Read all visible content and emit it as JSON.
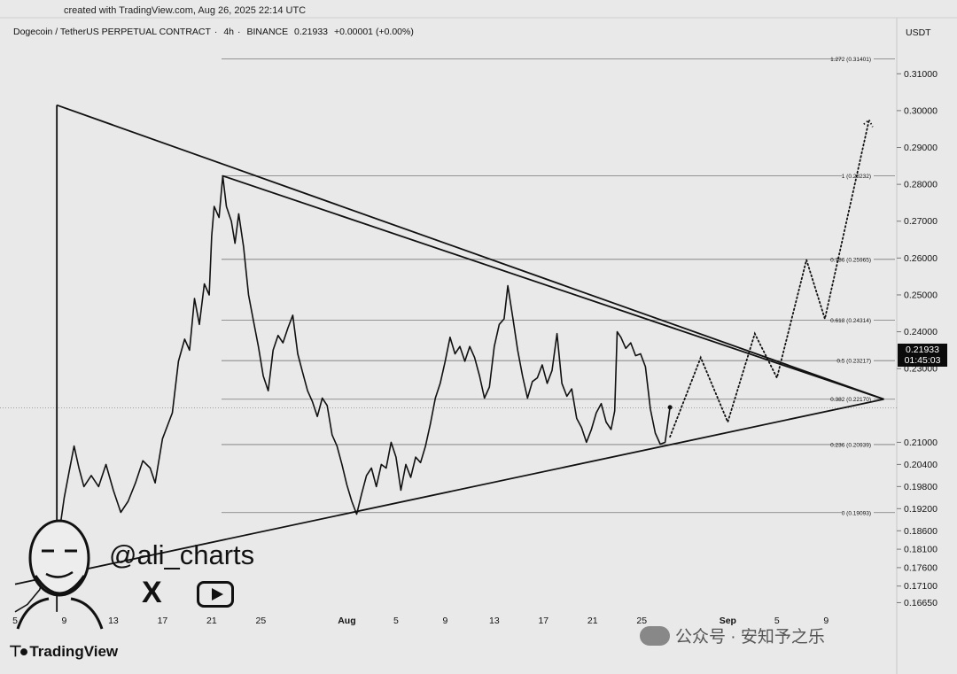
{
  "header": {
    "created": "created with TradingView.com, Aug 26, 2025 22:14 UTC",
    "symbol": "Dogecoin / TetherUS PERPETUAL CONTRACT",
    "interval": "4h",
    "exchange": "BINANCE",
    "price": "0.21933",
    "change": "+0.00001 (+0.00%)",
    "currency": "USDT"
  },
  "price_tag": {
    "price": "0.21933",
    "countdown": "01:45:03"
  },
  "branding": {
    "logo_text": "TradingView",
    "handle": "@ali_charts",
    "x_glyph": "X",
    "watermark": "公众号 · 安知予之乐"
  },
  "colors": {
    "background": "#e9e9e9",
    "line": "#111111",
    "grid": "#c9c9c9",
    "price_tag_bg": "#0b0b0b"
  },
  "chart_data": {
    "type": "line",
    "xlim": [
      0,
      68
    ],
    "ylim": [
      0.163,
      0.318
    ],
    "x_ticks": [
      {
        "x": 0,
        "label": "5"
      },
      {
        "x": 4,
        "label": "9"
      },
      {
        "x": 8,
        "label": "13"
      },
      {
        "x": 12,
        "label": "17"
      },
      {
        "x": 16,
        "label": "21"
      },
      {
        "x": 20,
        "label": "25"
      },
      {
        "x": 27,
        "label": "Aug"
      },
      {
        "x": 31,
        "label": "5"
      },
      {
        "x": 35,
        "label": "9"
      },
      {
        "x": 39,
        "label": "13"
      },
      {
        "x": 43,
        "label": "17"
      },
      {
        "x": 47,
        "label": "21"
      },
      {
        "x": 51,
        "label": "25"
      },
      {
        "x": 58,
        "label": "Sep"
      },
      {
        "x": 62,
        "label": "5"
      },
      {
        "x": 66,
        "label": "9"
      }
    ],
    "y_ticks": [
      {
        "v": 0.31,
        "label": "0.31000"
      },
      {
        "v": 0.3,
        "label": "0.30000"
      },
      {
        "v": 0.29,
        "label": "0.29000"
      },
      {
        "v": 0.28,
        "label": "0.28000"
      },
      {
        "v": 0.27,
        "label": "0.27000"
      },
      {
        "v": 0.26,
        "label": "0.26000"
      },
      {
        "v": 0.25,
        "label": "0.25000"
      },
      {
        "v": 0.24,
        "label": "0.24000"
      },
      {
        "v": 0.23,
        "label": "0.23000"
      },
      {
        "v": 0.21,
        "label": "0.21000"
      },
      {
        "v": 0.204,
        "label": "0.20400"
      },
      {
        "v": 0.198,
        "label": "0.19800"
      },
      {
        "v": 0.192,
        "label": "0.19200"
      },
      {
        "v": 0.186,
        "label": "0.18600"
      },
      {
        "v": 0.181,
        "label": "0.18100"
      },
      {
        "v": 0.176,
        "label": "0.17600"
      },
      {
        "v": 0.171,
        "label": "0.17100"
      },
      {
        "v": 0.1665,
        "label": "0.16650"
      }
    ],
    "fib_levels": [
      {
        "v": 0.31401,
        "label": "1.272 (0.31401)"
      },
      {
        "v": 0.28232,
        "label": "1 (0.28232)"
      },
      {
        "v": 0.25965,
        "label": "0.786 (0.25965)"
      },
      {
        "v": 0.24314,
        "label": "0.618 (0.24314)"
      },
      {
        "v": 0.23217,
        "label": "0.5 (0.23217)"
      },
      {
        "v": 0.2217,
        "label": "0.382 (0.22170)"
      },
      {
        "v": 0.20939,
        "label": "0.236 (0.20939)"
      },
      {
        "v": 0.19093,
        "label": "0 (0.19093)"
      }
    ],
    "fib_x_start": 16.8,
    "price_series": [
      [
        0,
        0.164
      ],
      [
        1,
        0.166
      ],
      [
        2,
        0.17
      ],
      [
        2.6,
        0.176
      ],
      [
        3,
        0.178
      ],
      [
        3.4,
        0.181
      ],
      [
        4,
        0.195
      ],
      [
        4.4,
        0.202
      ],
      [
        4.8,
        0.209
      ],
      [
        5.2,
        0.203
      ],
      [
        5.6,
        0.198
      ],
      [
        6.2,
        0.201
      ],
      [
        6.8,
        0.198
      ],
      [
        7.4,
        0.204
      ],
      [
        8.0,
        0.197
      ],
      [
        8.6,
        0.191
      ],
      [
        9.2,
        0.194
      ],
      [
        9.8,
        0.199
      ],
      [
        10.4,
        0.205
      ],
      [
        11.0,
        0.203
      ],
      [
        11.4,
        0.199
      ],
      [
        12.0,
        0.211
      ],
      [
        12.8,
        0.218
      ],
      [
        13.3,
        0.232
      ],
      [
        13.8,
        0.238
      ],
      [
        14.2,
        0.235
      ],
      [
        14.6,
        0.249
      ],
      [
        15.0,
        0.242
      ],
      [
        15.4,
        0.253
      ],
      [
        15.8,
        0.25
      ],
      [
        16.0,
        0.266
      ],
      [
        16.2,
        0.274
      ],
      [
        16.6,
        0.271
      ],
      [
        16.9,
        0.2823
      ],
      [
        17.2,
        0.274
      ],
      [
        17.6,
        0.27
      ],
      [
        17.9,
        0.264
      ],
      [
        18.2,
        0.272
      ],
      [
        18.6,
        0.263
      ],
      [
        19.0,
        0.25
      ],
      [
        19.4,
        0.243
      ],
      [
        19.8,
        0.236
      ],
      [
        20.2,
        0.228
      ],
      [
        20.6,
        0.224
      ],
      [
        21.0,
        0.235
      ],
      [
        21.4,
        0.239
      ],
      [
        21.8,
        0.237
      ],
      [
        22.2,
        0.241
      ],
      [
        22.6,
        0.2445
      ],
      [
        23.0,
        0.234
      ],
      [
        23.4,
        0.229
      ],
      [
        23.8,
        0.224
      ],
      [
        24.2,
        0.221
      ],
      [
        24.6,
        0.217
      ],
      [
        25.0,
        0.222
      ],
      [
        25.4,
        0.22
      ],
      [
        25.8,
        0.212
      ],
      [
        26.2,
        0.209
      ],
      [
        26.6,
        0.204
      ],
      [
        27.0,
        0.1985
      ],
      [
        27.4,
        0.194
      ],
      [
        27.8,
        0.1905
      ],
      [
        28.2,
        0.196
      ],
      [
        28.6,
        0.201
      ],
      [
        29.0,
        0.203
      ],
      [
        29.4,
        0.198
      ],
      [
        29.8,
        0.204
      ],
      [
        30.2,
        0.203
      ],
      [
        30.6,
        0.21
      ],
      [
        31.0,
        0.206
      ],
      [
        31.4,
        0.197
      ],
      [
        31.8,
        0.204
      ],
      [
        32.2,
        0.2005
      ],
      [
        32.6,
        0.206
      ],
      [
        33.0,
        0.2045
      ],
      [
        33.4,
        0.209
      ],
      [
        33.8,
        0.215
      ],
      [
        34.2,
        0.222
      ],
      [
        34.6,
        0.226
      ],
      [
        35.0,
        0.232
      ],
      [
        35.4,
        0.2385
      ],
      [
        35.8,
        0.234
      ],
      [
        36.2,
        0.236
      ],
      [
        36.6,
        0.232
      ],
      [
        37.0,
        0.236
      ],
      [
        37.4,
        0.233
      ],
      [
        37.8,
        0.228
      ],
      [
        38.2,
        0.222
      ],
      [
        38.6,
        0.225
      ],
      [
        39.0,
        0.236
      ],
      [
        39.4,
        0.242
      ],
      [
        39.8,
        0.2435
      ],
      [
        40.1,
        0.2525
      ],
      [
        40.5,
        0.244
      ],
      [
        40.9,
        0.235
      ],
      [
        41.3,
        0.228
      ],
      [
        41.7,
        0.222
      ],
      [
        42.1,
        0.2265
      ],
      [
        42.5,
        0.2275
      ],
      [
        42.9,
        0.231
      ],
      [
        43.3,
        0.226
      ],
      [
        43.7,
        0.2295
      ],
      [
        44.1,
        0.2395
      ],
      [
        44.5,
        0.226
      ],
      [
        44.9,
        0.2225
      ],
      [
        45.3,
        0.2245
      ],
      [
        45.7,
        0.2165
      ],
      [
        46.1,
        0.214
      ],
      [
        46.5,
        0.21
      ],
      [
        46.9,
        0.2135
      ],
      [
        47.3,
        0.218
      ],
      [
        47.7,
        0.2205
      ],
      [
        48.1,
        0.2155
      ],
      [
        48.5,
        0.2135
      ],
      [
        48.8,
        0.2185
      ],
      [
        49.0,
        0.24
      ],
      [
        49.3,
        0.2385
      ],
      [
        49.7,
        0.2355
      ],
      [
        50.1,
        0.237
      ],
      [
        50.5,
        0.2335
      ],
      [
        50.9,
        0.234
      ],
      [
        51.3,
        0.2305
      ],
      [
        51.7,
        0.219
      ],
      [
        52.1,
        0.2125
      ],
      [
        52.5,
        0.2095
      ],
      [
        52.9,
        0.21
      ],
      [
        53.3,
        0.2195
      ]
    ],
    "projection": [
      [
        53.3,
        0.2115
      ],
      [
        55.8,
        0.233
      ],
      [
        58.0,
        0.2155
      ],
      [
        60.2,
        0.2395
      ],
      [
        62.0,
        0.2275
      ],
      [
        64.4,
        0.2595
      ],
      [
        65.9,
        0.2435
      ],
      [
        69.5,
        0.2975
      ]
    ],
    "triangle_upper": [
      [
        16.9,
        0.2823
      ],
      [
        70.7,
        0.2217
      ]
    ],
    "triangle_lower": [
      [
        0,
        0.1715
      ],
      [
        70.7,
        0.2217
      ]
    ],
    "triangle_left": [
      [
        3.4,
        0.3015
      ],
      [
        3.4,
        0.164
      ]
    ],
    "triangle_top": [
      [
        3.4,
        0.3015
      ],
      [
        70.7,
        0.2217
      ]
    ]
  }
}
